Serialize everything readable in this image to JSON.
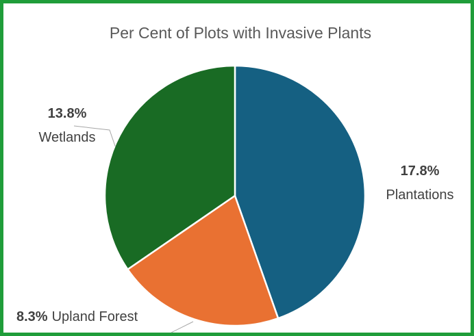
{
  "chart_data": {
    "type": "pie",
    "title": "Per Cent of Plots with Invasive Plants",
    "slices": [
      {
        "label": "Plantations",
        "value": 17.8,
        "display": "17.8%",
        "color": "#156082"
      },
      {
        "label": "Upland Forest",
        "value": 8.3,
        "display": "8.3%",
        "color": "#e97132"
      },
      {
        "label": "Wetlands",
        "value": 13.8,
        "display": "13.8%",
        "color": "#196b24"
      }
    ],
    "start_angle_deg": 0,
    "direction": "clockwise",
    "legend": "none",
    "frame_color": "#1f9d3a"
  }
}
